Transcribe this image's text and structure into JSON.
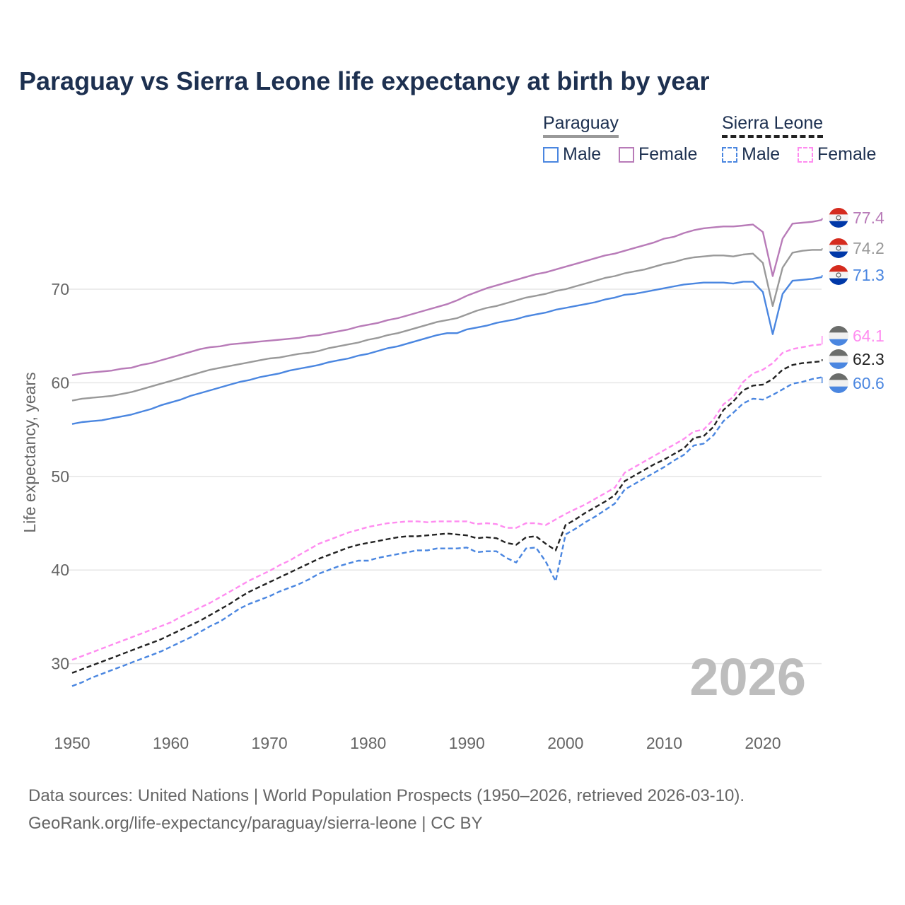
{
  "title": "Paraguay vs Sierra Leone life expectancy at birth by year",
  "legend": {
    "groups": [
      {
        "name": "Paraguay",
        "items": [
          "Male",
          "Female"
        ]
      },
      {
        "name": "Sierra Leone",
        "items": [
          "Male",
          "Female"
        ]
      }
    ]
  },
  "year_watermark": "2026",
  "footer": {
    "line1": "Data sources: United Nations | World Population Prospects (1950–2026, retrieved 2026-03-10).",
    "line2": "GeoRank.org/life-expectancy/paraguay/sierra-leone | CC BY"
  },
  "end_labels": [
    "77.4",
    "74.2",
    "71.3",
    "64.1",
    "62.3",
    "60.6"
  ],
  "chart_data": {
    "type": "line",
    "title": "Paraguay vs Sierra Leone life expectancy at birth by year",
    "xlabel": "",
    "ylabel": "Life expectancy, years",
    "xlim": [
      1950,
      2026
    ],
    "ylim": [
      24,
      80
    ],
    "x_ticks": [
      "1950",
      "1960",
      "1970",
      "1980",
      "1990",
      "2000",
      "2010",
      "2020"
    ],
    "y_ticks": [
      "30",
      "40",
      "50",
      "60",
      "70"
    ],
    "grid": true,
    "legend_position": "top-right",
    "x_start": 1950,
    "series": [
      {
        "name": "Paraguay Female",
        "color": "#b87bb8",
        "dashed": false,
        "flag": "paraguay",
        "label": "77.4",
        "values": [
          60.8,
          61.0,
          61.1,
          61.2,
          61.3,
          61.5,
          61.6,
          61.9,
          62.1,
          62.4,
          62.7,
          63.0,
          63.3,
          63.6,
          63.8,
          63.9,
          64.1,
          64.2,
          64.3,
          64.4,
          64.5,
          64.6,
          64.7,
          64.8,
          65.0,
          65.1,
          65.3,
          65.5,
          65.7,
          66.0,
          66.2,
          66.4,
          66.7,
          66.9,
          67.2,
          67.5,
          67.8,
          68.1,
          68.4,
          68.8,
          69.3,
          69.7,
          70.1,
          70.4,
          70.7,
          71.0,
          71.3,
          71.6,
          71.8,
          72.1,
          72.4,
          72.7,
          73.0,
          73.3,
          73.6,
          73.8,
          74.1,
          74.4,
          74.7,
          75.0,
          75.4,
          75.6,
          76.0,
          76.3,
          76.5,
          76.6,
          76.7,
          76.7,
          76.8,
          76.9,
          76.1,
          71.4,
          75.4,
          77.0,
          77.1,
          77.2,
          77.4
        ]
      },
      {
        "name": "Paraguay",
        "color": "#999999",
        "dashed": false,
        "flag": "paraguay",
        "label": "74.2",
        "values": [
          58.1,
          58.3,
          58.4,
          58.5,
          58.6,
          58.8,
          59.0,
          59.3,
          59.6,
          59.9,
          60.2,
          60.5,
          60.8,
          61.1,
          61.4,
          61.6,
          61.8,
          62.0,
          62.2,
          62.4,
          62.6,
          62.7,
          62.9,
          63.1,
          63.2,
          63.4,
          63.7,
          63.9,
          64.1,
          64.3,
          64.6,
          64.8,
          65.1,
          65.3,
          65.6,
          65.9,
          66.2,
          66.5,
          66.7,
          66.9,
          67.3,
          67.7,
          68.0,
          68.2,
          68.5,
          68.8,
          69.1,
          69.3,
          69.5,
          69.8,
          70.0,
          70.3,
          70.6,
          70.9,
          71.2,
          71.4,
          71.7,
          71.9,
          72.1,
          72.4,
          72.7,
          72.9,
          73.2,
          73.4,
          73.5,
          73.6,
          73.6,
          73.5,
          73.7,
          73.8,
          72.8,
          68.2,
          72.3,
          73.9,
          74.1,
          74.2,
          74.2
        ]
      },
      {
        "name": "Paraguay Male",
        "color": "#4a86e0",
        "dashed": false,
        "flag": "paraguay",
        "label": "71.3",
        "values": [
          55.6,
          55.8,
          55.9,
          56.0,
          56.2,
          56.4,
          56.6,
          56.9,
          57.2,
          57.6,
          57.9,
          58.2,
          58.6,
          58.9,
          59.2,
          59.5,
          59.8,
          60.1,
          60.3,
          60.6,
          60.8,
          61.0,
          61.3,
          61.5,
          61.7,
          61.9,
          62.2,
          62.4,
          62.6,
          62.9,
          63.1,
          63.4,
          63.7,
          63.9,
          64.2,
          64.5,
          64.8,
          65.1,
          65.3,
          65.3,
          65.7,
          65.9,
          66.1,
          66.4,
          66.6,
          66.8,
          67.1,
          67.3,
          67.5,
          67.8,
          68.0,
          68.2,
          68.4,
          68.6,
          68.9,
          69.1,
          69.4,
          69.5,
          69.7,
          69.9,
          70.1,
          70.3,
          70.5,
          70.6,
          70.7,
          70.7,
          70.7,
          70.6,
          70.8,
          70.8,
          69.7,
          65.2,
          69.5,
          70.9,
          71.0,
          71.1,
          71.3
        ]
      },
      {
        "name": "Sierra Leone Female",
        "color": "#ff8cf0",
        "dashed": true,
        "flag": "sierra-leone",
        "label": "64.1",
        "values": [
          30.4,
          30.8,
          31.2,
          31.6,
          32.0,
          32.4,
          32.8,
          33.2,
          33.6,
          34.0,
          34.4,
          35.0,
          35.5,
          36.0,
          36.5,
          37.1,
          37.7,
          38.3,
          38.9,
          39.4,
          39.9,
          40.5,
          41.0,
          41.6,
          42.2,
          42.8,
          43.2,
          43.6,
          44.0,
          44.3,
          44.6,
          44.8,
          45.0,
          45.1,
          45.2,
          45.2,
          45.1,
          45.2,
          45.2,
          45.2,
          45.2,
          44.9,
          45.0,
          44.9,
          44.5,
          44.5,
          45.0,
          45.0,
          44.8,
          45.4,
          46.0,
          46.5,
          47.0,
          47.6,
          48.2,
          48.8,
          50.4,
          51.0,
          51.6,
          52.2,
          52.8,
          53.4,
          54.0,
          54.8,
          55.0,
          56.1,
          57.7,
          58.5,
          60.1,
          61.0,
          61.4,
          62.1,
          63.2,
          63.6,
          63.8,
          64.0,
          64.1
        ]
      },
      {
        "name": "Sierra Leone",
        "color": "#222222",
        "dashed": true,
        "flag": "sierra-leone",
        "label": "62.3",
        "values": [
          29.0,
          29.4,
          29.8,
          30.2,
          30.6,
          31.0,
          31.4,
          31.8,
          32.2,
          32.6,
          33.1,
          33.6,
          34.1,
          34.6,
          35.2,
          35.8,
          36.4,
          37.1,
          37.7,
          38.2,
          38.7,
          39.2,
          39.7,
          40.2,
          40.7,
          41.2,
          41.6,
          42.0,
          42.4,
          42.7,
          42.9,
          43.1,
          43.3,
          43.5,
          43.6,
          43.6,
          43.7,
          43.8,
          43.9,
          43.8,
          43.7,
          43.4,
          43.5,
          43.4,
          42.9,
          42.7,
          43.5,
          43.6,
          42.8,
          42.1,
          44.8,
          45.4,
          46.1,
          46.7,
          47.3,
          48.0,
          49.5,
          50.1,
          50.7,
          51.3,
          51.8,
          52.4,
          53.0,
          54.1,
          54.3,
          55.3,
          57.1,
          58.0,
          59.2,
          59.7,
          59.8,
          60.4,
          61.4,
          61.9,
          62.1,
          62.2,
          62.3
        ]
      },
      {
        "name": "Sierra Leone Male",
        "color": "#4a86e0",
        "dashed": true,
        "flag": "sierra-leone",
        "label": "60.6",
        "values": [
          27.6,
          28.0,
          28.5,
          28.9,
          29.3,
          29.7,
          30.1,
          30.5,
          30.9,
          31.3,
          31.8,
          32.3,
          32.8,
          33.4,
          34.0,
          34.5,
          35.2,
          35.9,
          36.4,
          36.8,
          37.2,
          37.7,
          38.1,
          38.5,
          39.0,
          39.6,
          40.0,
          40.4,
          40.7,
          41.0,
          41.0,
          41.3,
          41.5,
          41.7,
          41.9,
          42.1,
          42.1,
          42.3,
          42.3,
          42.3,
          42.4,
          41.9,
          42.0,
          42.0,
          41.3,
          40.8,
          42.3,
          42.4,
          40.9,
          38.8,
          43.8,
          44.4,
          45.1,
          45.7,
          46.4,
          47.1,
          48.6,
          49.2,
          49.8,
          50.4,
          51.0,
          51.7,
          52.3,
          53.3,
          53.5,
          54.4,
          55.9,
          56.8,
          57.8,
          58.3,
          58.2,
          58.7,
          59.3,
          59.9,
          60.1,
          60.4,
          60.6
        ]
      }
    ]
  }
}
